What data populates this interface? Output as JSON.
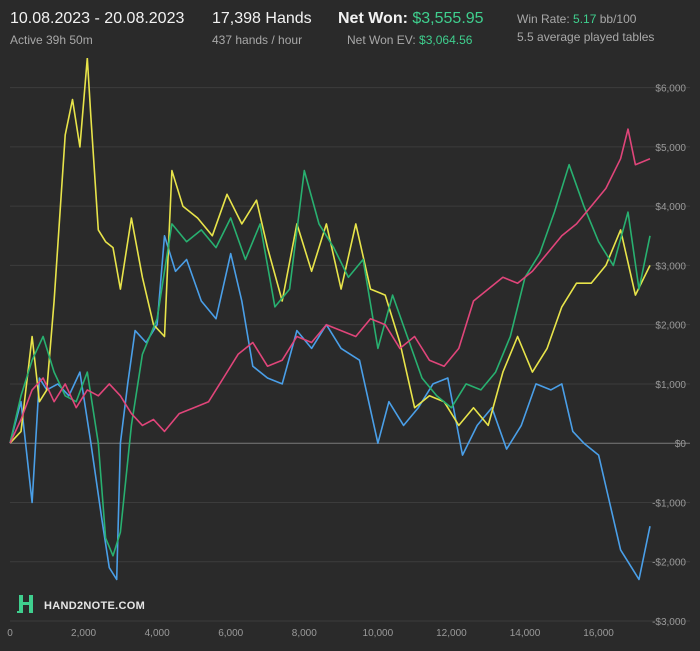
{
  "header": {
    "date_range": "10.08.2023 - 20.08.2023",
    "active": "Active 39h 50m",
    "hands": "17,398 Hands",
    "hands_per_hour": "437 hands / hour",
    "net_won_label": "Net Won:",
    "net_won_value": "$3,555.95",
    "net_won_ev_label": "Net Won  EV:",
    "net_won_ev_value": "$3,064.56",
    "win_rate_label": "Win Rate:",
    "win_rate_value": "5.17",
    "win_rate_unit": "bb/100",
    "tables": "5.5 average played tables"
  },
  "logo": {
    "text": "HAND2NOTE.COM"
  },
  "colors": {
    "background": "#2a2a2a",
    "grid": "#3c3c3c",
    "zero_line": "#7a7a7a",
    "accent_green": "#3fcf8e"
  },
  "chart_data": {
    "type": "line",
    "xlim": [
      0,
      17398
    ],
    "ylim": [
      -3000,
      6500
    ],
    "x_ticks": [
      0,
      2000,
      4000,
      6000,
      8000,
      10000,
      12000,
      14000,
      16000
    ],
    "x_tick_labels": [
      "0",
      "2,000",
      "4,000",
      "6,000",
      "8,000",
      "10,000",
      "12,000",
      "14,000",
      "16,000"
    ],
    "y_ticks": [
      -3000,
      -2000,
      -1000,
      0,
      1000,
      2000,
      3000,
      4000,
      5000,
      6000
    ],
    "y_tick_labels": [
      "-$3,000",
      "-$2,000",
      "-$1,000",
      "$0",
      "$1,000",
      "$2,000",
      "$3,000",
      "$4,000",
      "$5,000",
      "$6,000"
    ],
    "grid": true,
    "series": [
      {
        "color": "#4a9fe8",
        "x": [
          0,
          300,
          600,
          800,
          1000,
          1300,
          1600,
          1900,
          2200,
          2500,
          2700,
          2900,
          3000,
          3200,
          3400,
          3700,
          4000,
          4200,
          4500,
          4800,
          5200,
          5600,
          6000,
          6300,
          6600,
          7000,
          7400,
          7800,
          8200,
          8600,
          9000,
          9500,
          10000,
          10300,
          10700,
          11100,
          11500,
          11900,
          12300,
          12700,
          13100,
          13500,
          13900,
          14300,
          14700,
          15000,
          15300,
          15600,
          16000,
          16300,
          16600,
          16900,
          17100,
          17398
        ],
        "y": [
          0,
          700,
          -1000,
          1100,
          900,
          1000,
          800,
          1200,
          0,
          -1300,
          -2100,
          -2300,
          0,
          1000,
          1900,
          1700,
          2000,
          3500,
          2900,
          3100,
          2400,
          2100,
          3200,
          2400,
          1300,
          1100,
          1000,
          1900,
          1600,
          2000,
          1600,
          1400,
          0,
          700,
          300,
          600,
          1000,
          1100,
          -200,
          300,
          600,
          -100,
          300,
          1000,
          900,
          1000,
          200,
          0,
          -200,
          -1000,
          -1800,
          -2100,
          -2300,
          -1400
        ]
      },
      {
        "color": "#e8e44a",
        "x": [
          0,
          300,
          600,
          800,
          1000,
          1200,
          1500,
          1700,
          1900,
          2100,
          2200,
          2400,
          2600,
          2800,
          3000,
          3300,
          3600,
          3900,
          4200,
          4400,
          4700,
          5100,
          5500,
          5900,
          6300,
          6700,
          7000,
          7400,
          7800,
          8200,
          8600,
          9000,
          9400,
          9800,
          10200,
          10600,
          11000,
          11400,
          11800,
          12200,
          12600,
          13000,
          13400,
          13800,
          14200,
          14600,
          15000,
          15400,
          15800,
          16200,
          16600,
          17000,
          17398
        ],
        "y": [
          0,
          200,
          1800,
          700,
          900,
          2400,
          5200,
          5800,
          5000,
          6500,
          5500,
          3600,
          3400,
          3300,
          2600,
          3800,
          2800,
          2000,
          1800,
          4600,
          4000,
          3800,
          3500,
          4200,
          3700,
          4100,
          3300,
          2400,
          3700,
          2900,
          3700,
          2600,
          3700,
          2600,
          2500,
          1700,
          600,
          800,
          700,
          300,
          600,
          300,
          1200,
          1800,
          1200,
          1600,
          2300,
          2700,
          2700,
          3000,
          3600,
          2500,
          3000
        ]
      },
      {
        "color": "#28b070",
        "x": [
          0,
          300,
          600,
          900,
          1200,
          1500,
          1800,
          2100,
          2400,
          2600,
          2800,
          3000,
          3300,
          3600,
          4000,
          4400,
          4800,
          5200,
          5600,
          6000,
          6400,
          6800,
          7200,
          7600,
          8000,
          8400,
          8800,
          9200,
          9600,
          10000,
          10400,
          10800,
          11200,
          11600,
          12000,
          12400,
          12800,
          13200,
          13600,
          14000,
          14400,
          14800,
          15200,
          15600,
          16000,
          16400,
          16800,
          17100,
          17398
        ],
        "y": [
          0,
          800,
          1400,
          1800,
          1200,
          800,
          700,
          1200,
          0,
          -1600,
          -1900,
          -1500,
          300,
          1500,
          2100,
          3700,
          3400,
          3600,
          3300,
          3800,
          3100,
          3700,
          2300,
          2600,
          4600,
          3700,
          3300,
          2800,
          3100,
          1600,
          2500,
          1800,
          1100,
          800,
          600,
          1000,
          900,
          1200,
          1800,
          2800,
          3200,
          3900,
          4700,
          4000,
          3400,
          3000,
          3900,
          2600,
          3500
        ]
      },
      {
        "color": "#e0457a",
        "x": [
          0,
          300,
          600,
          900,
          1200,
          1500,
          1800,
          2100,
          2400,
          2700,
          3000,
          3300,
          3600,
          3900,
          4200,
          4600,
          5000,
          5400,
          5800,
          6200,
          6600,
          7000,
          7400,
          7800,
          8200,
          8600,
          9000,
          9400,
          9800,
          10200,
          10600,
          11000,
          11400,
          11800,
          12200,
          12600,
          13000,
          13400,
          13800,
          14200,
          14600,
          15000,
          15400,
          15800,
          16200,
          16600,
          16800,
          17000,
          17398
        ],
        "y": [
          0,
          400,
          900,
          1100,
          700,
          1000,
          600,
          900,
          800,
          1000,
          800,
          500,
          300,
          400,
          200,
          500,
          600,
          700,
          1100,
          1500,
          1700,
          1300,
          1400,
          1800,
          1700,
          2000,
          1900,
          1800,
          2100,
          2000,
          1600,
          1800,
          1400,
          1300,
          1600,
          2400,
          2600,
          2800,
          2700,
          2900,
          3200,
          3500,
          3700,
          4000,
          4300,
          4800,
          5300,
          4700,
          4800
        ]
      }
    ]
  }
}
